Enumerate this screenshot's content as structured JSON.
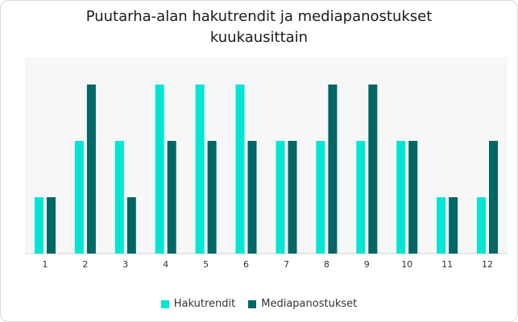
{
  "chart_data": {
    "type": "bar",
    "title_lines": [
      "Puutarha-alan hakutrendit ja mediapanostukset",
      "kuukausittain"
    ],
    "categories": [
      "1",
      "2",
      "3",
      "4",
      "5",
      "6",
      "7",
      "8",
      "9",
      "10",
      "11",
      "12"
    ],
    "series": [
      {
        "name": "Hakutrendit",
        "color": "#00e6d2",
        "values": [
          1,
          2,
          2,
          3,
          3,
          3,
          2,
          2,
          2,
          2,
          1,
          1
        ]
      },
      {
        "name": "Mediapanostukset",
        "color": "#006666",
        "values": [
          1,
          3,
          1,
          2,
          2,
          2,
          2,
          3,
          3,
          2,
          1,
          2
        ]
      }
    ],
    "ylim": [
      0,
      3.5
    ],
    "grid": false,
    "legend_position": "bottom"
  }
}
